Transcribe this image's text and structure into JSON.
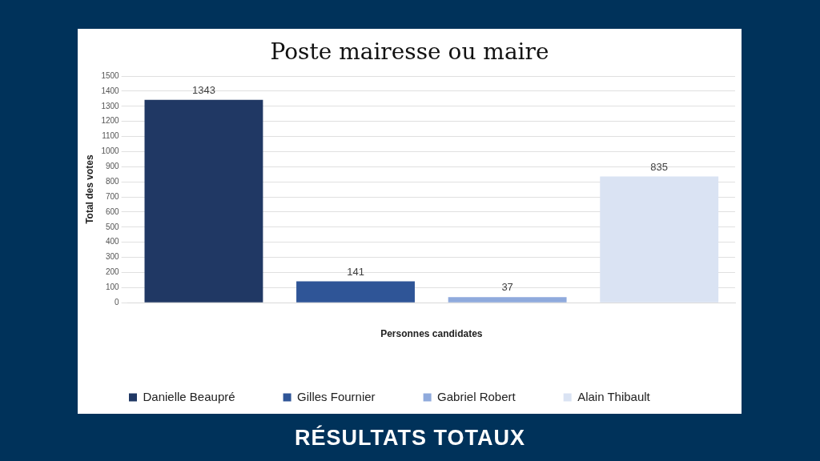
{
  "chart_data": {
    "type": "bar",
    "title": "Poste mairesse ou maire",
    "xlabel": "Personnes candidates",
    "ylabel": "Total des votes",
    "annotations": [
      "RÉSULTATS TOTAUX"
    ],
    "categories": [
      null,
      null,
      null,
      null
    ],
    "series": [
      {
        "name": "Danielle Beaupré",
        "color": "#203864",
        "values": [
          1343,
          null,
          null,
          null
        ]
      },
      {
        "name": "Gilles Fournier",
        "color": "#2f5597",
        "values": [
          null,
          141,
          null,
          null
        ]
      },
      {
        "name": "Gabriel Robert",
        "color": "#8faadc",
        "values": [
          null,
          null,
          37,
          null
        ]
      },
      {
        "name": "Alain Thibault",
        "color": "#dae3f3",
        "values": [
          null,
          null,
          null,
          835
        ]
      }
    ],
    "ylim": [
      0,
      1500
    ],
    "yticks": [
      0,
      100,
      200,
      300,
      400,
      500,
      600,
      700,
      800,
      900,
      1000,
      1100,
      1200,
      1300,
      1400,
      1500
    ],
    "grid": "y",
    "legend": "bottom",
    "data_labels": true
  }
}
